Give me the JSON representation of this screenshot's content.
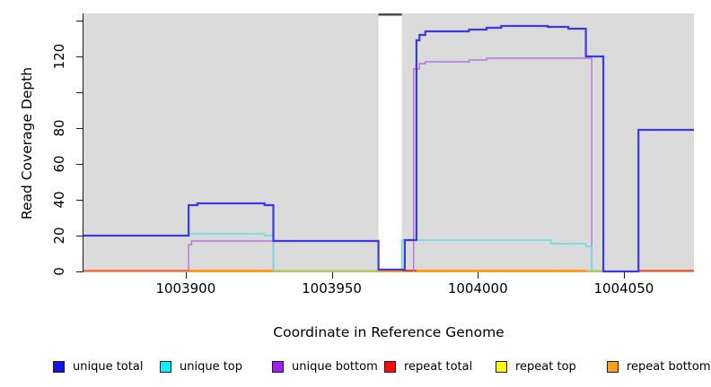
{
  "chart_data": {
    "type": "line",
    "subtype": "step-coverage-plot",
    "title": "",
    "xlabel": "Coordinate in Reference Genome",
    "ylabel": "Read Coverage Depth",
    "xlim": [
      1003865,
      1004074
    ],
    "ylim": [
      0,
      144
    ],
    "grid": false,
    "plot_bg": "#DBDBDB",
    "x_ticks": [
      1003900,
      1003950,
      1004000,
      1004050
    ],
    "x_tick_labels": [
      "1003900",
      "1003950",
      "1004000",
      "1004050"
    ],
    "y_ticks": [
      0,
      20,
      40,
      60,
      80,
      100,
      120,
      140
    ],
    "y_tick_labels": [
      "0",
      "20",
      "40",
      "60",
      "80",
      "",
      "120",
      ""
    ],
    "masked_region": {
      "x1": 1003966,
      "x2": 1003974,
      "color": "#FFFFFF",
      "tick_color": "#4a4a4a"
    },
    "series": [
      {
        "name": "repeat total",
        "legend_color": "#FF0A0A",
        "line_color": "#D6404E",
        "width": 1.6,
        "paths": [
          [
            [
              1003865,
              0
            ],
            [
              1004074,
              0
            ]
          ]
        ]
      },
      {
        "name": "repeat top",
        "legend_color": "#FFFF00",
        "line_color": "#FFE800",
        "width": 1.6,
        "paths": [
          [
            [
              1003865,
              0
            ],
            [
              1004074,
              0
            ]
          ]
        ]
      },
      {
        "name": "repeat bottom",
        "legend_color": "#FFA018",
        "line_color": "#FF9A1E",
        "width": 1.8,
        "paths": [
          [
            [
              1003865,
              0
            ],
            [
              1004074,
              0
            ]
          ]
        ]
      },
      {
        "name": "unique bottom",
        "legend_color": "#A020F0",
        "line_color": "#B275DD",
        "width": 1.4,
        "paths": [
          [
            [
              1003901,
              0
            ],
            [
              1003901,
              15
            ],
            [
              1003902,
              15
            ],
            [
              1003902,
              17
            ],
            [
              1003930,
              17
            ],
            [
              1003930,
              0
            ]
          ],
          [
            [
              1003978,
              0
            ],
            [
              1003978,
              113
            ],
            [
              1003980,
              113
            ],
            [
              1003980,
              116
            ],
            [
              1003982,
              116
            ],
            [
              1003982,
              117
            ],
            [
              1003997,
              117
            ],
            [
              1003997,
              118
            ],
            [
              1004003,
              118
            ],
            [
              1004003,
              119
            ],
            [
              1004039,
              119
            ],
            [
              1004039,
              0
            ]
          ]
        ]
      },
      {
        "name": "unique top",
        "legend_color": "#00F5FF",
        "line_color": "#5FE0E8",
        "width": 1.4,
        "paths": [
          [
            [
              1003865,
              20
            ],
            [
              1003901,
              20
            ],
            [
              1003901,
              21
            ],
            [
              1003927,
              21
            ],
            [
              1003927,
              20
            ],
            [
              1003930,
              20
            ],
            [
              1003930,
              0
            ]
          ],
          [
            [
              1003974,
              0
            ],
            [
              1003974,
              17.5
            ],
            [
              1004025,
              17.5
            ],
            [
              1004025,
              15.5
            ],
            [
              1004037,
              15.5
            ],
            [
              1004037,
              14
            ],
            [
              1004039,
              14
            ],
            [
              1004039,
              0
            ]
          ]
        ]
      },
      {
        "name": "unique total",
        "legend_color": "#1414E6",
        "line_color": "#3A3AE0",
        "width": 2.2,
        "paths": [
          [
            [
              1003865,
              20
            ],
            [
              1003901,
              20
            ],
            [
              1003901,
              37
            ],
            [
              1003904,
              37
            ],
            [
              1003904,
              38
            ],
            [
              1003927,
              38
            ],
            [
              1003927,
              37
            ],
            [
              1003930,
              37
            ],
            [
              1003930,
              17
            ],
            [
              1003966,
              17
            ],
            [
              1003966,
              1
            ],
            [
              1003975,
              1
            ],
            [
              1003975,
              17.5
            ],
            [
              1003979,
              17.5
            ],
            [
              1003979,
              129
            ],
            [
              1003980,
              129
            ],
            [
              1003980,
              132
            ],
            [
              1003982,
              132
            ],
            [
              1003982,
              134
            ],
            [
              1003997,
              134
            ],
            [
              1003997,
              135
            ],
            [
              1004003,
              135
            ],
            [
              1004003,
              136
            ],
            [
              1004008,
              136
            ],
            [
              1004008,
              137
            ],
            [
              1004024,
              137
            ],
            [
              1004024,
              136.5
            ],
            [
              1004031,
              136.5
            ],
            [
              1004031,
              135.5
            ],
            [
              1004037,
              135.5
            ],
            [
              1004037,
              120
            ],
            [
              1004043,
              120
            ],
            [
              1004043,
              0
            ],
            [
              1004055,
              0
            ],
            [
              1004055,
              79
            ],
            [
              1004074,
              79
            ]
          ]
        ]
      }
    ],
    "baseline_segments": [
      [
        1003865,
        1003901,
        "#E87080"
      ],
      [
        1003901,
        1003930,
        "#FF9A1E"
      ],
      [
        1003930,
        1003966,
        "#96D8A0"
      ],
      [
        1003974,
        1003979,
        "#D6404E"
      ],
      [
        1003979,
        1004037,
        "#FF9A1E"
      ],
      [
        1004037,
        1004043,
        "#96D8A0"
      ],
      [
        1004055,
        1004074,
        "#E06070"
      ]
    ]
  },
  "legend": {
    "items": [
      {
        "label": "unique total",
        "color": "#1414E6"
      },
      {
        "label": "unique top",
        "color": "#00F5FF"
      },
      {
        "label": "unique bottom",
        "color": "#A020F0"
      },
      {
        "label": "repeat total",
        "color": "#FF0A0A"
      },
      {
        "label": "repeat top",
        "color": "#FFFF00"
      },
      {
        "label": "repeat bottom",
        "color": "#FFA018"
      }
    ]
  }
}
